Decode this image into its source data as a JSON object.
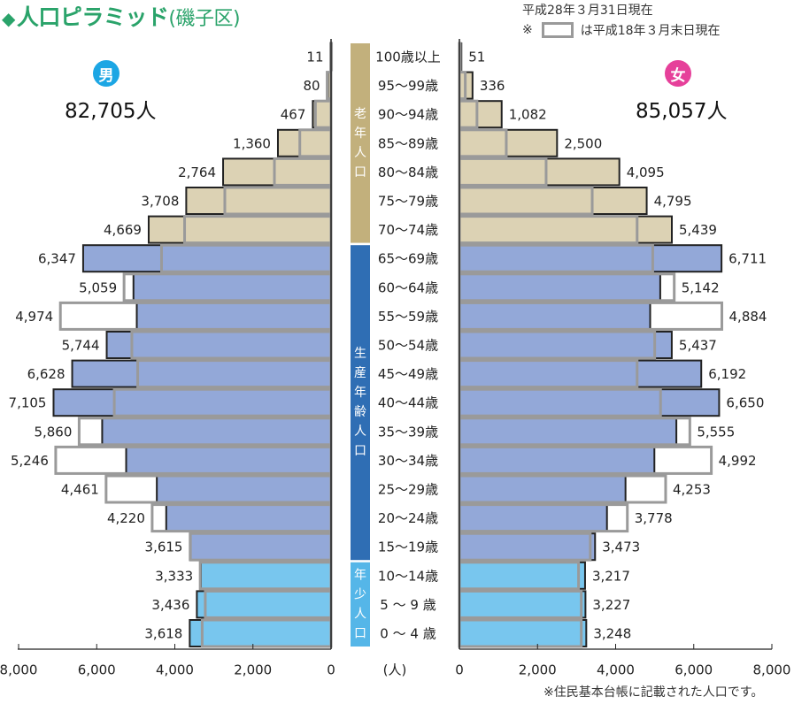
{
  "title": {
    "diamond": "◆",
    "main": "人口ピラミッド",
    "district": "(磯子区)"
  },
  "notes": {
    "as_of": "平成28年３月31日現在",
    "legend_prefix": "※",
    "legend_text": "は平成18年３月末日現在",
    "footnote": "※住民基本台帳に記載された人口です。"
  },
  "male": {
    "badge": "男",
    "total": "82,705人",
    "color": "#1ca6e4"
  },
  "female": {
    "badge": "女",
    "total": "85,057人",
    "color": "#e6409a"
  },
  "group_labels": {
    "elderly": [
      "老",
      "年",
      "人",
      "口"
    ],
    "working": [
      "生",
      "産",
      "年",
      "齢",
      "人",
      "口"
    ],
    "young": [
      "年",
      "少",
      "人",
      "口"
    ]
  },
  "colors": {
    "elderly": "#dcd2b4",
    "working": "#93a8d8",
    "young": "#78c6ee",
    "elderly_band": "#c2b07c",
    "working_band": "#2f6eb4",
    "young_band": "#55b6e8",
    "outline_current": "#222222",
    "outline_2006": "#9a9a9a"
  },
  "chart_data": {
    "type": "bar",
    "subtype": "population-pyramid",
    "categories": [
      "100歳以上",
      "95～99歳",
      "90～94歳",
      "85～89歳",
      "80～84歳",
      "75～79歳",
      "70～74歳",
      "65～69歳",
      "60～64歳",
      "55～59歳",
      "50～54歳",
      "45～49歳",
      "40～44歳",
      "35～39歳",
      "30～34歳",
      "25～29歳",
      "20～24歳",
      "15～19歳",
      "10～14歳",
      "5 ～ 9 歳",
      "0 ～ 4 歳"
    ],
    "groups": [
      "elderly",
      "elderly",
      "elderly",
      "elderly",
      "elderly",
      "elderly",
      "elderly",
      "working",
      "working",
      "working",
      "working",
      "working",
      "working",
      "working",
      "working",
      "working",
      "working",
      "working",
      "young",
      "young",
      "young"
    ],
    "series": [
      {
        "side": "male",
        "period": "current",
        "values": [
          11,
          80,
          467,
          1360,
          2764,
          3708,
          4669,
          6347,
          5059,
          4974,
          5744,
          6628,
          7105,
          5860,
          5246,
          4461,
          4220,
          3615,
          3333,
          3436,
          3618
        ],
        "labels": [
          "11",
          "80",
          "467",
          "1,360",
          "2,764",
          "3,708",
          "4,669",
          "6,347",
          "5,059",
          "4,974",
          "5,744",
          "6,628",
          "7,105",
          "5,860",
          "5,246",
          "4,461",
          "4,220",
          "3,615",
          "3,333",
          "3,436",
          "3,618"
        ]
      },
      {
        "side": "female",
        "period": "current",
        "values": [
          51,
          336,
          1082,
          2500,
          4095,
          4795,
          5439,
          6711,
          5142,
          4884,
          5437,
          6192,
          6650,
          5555,
          4992,
          4253,
          3778,
          3473,
          3217,
          3227,
          3248
        ],
        "labels": [
          "51",
          "336",
          "1,082",
          "2,500",
          "4,095",
          "4,795",
          "5,439",
          "6,711",
          "5,142",
          "4,884",
          "5,437",
          "6,192",
          "6,650",
          "5,555",
          "4,992",
          "4,253",
          "3,778",
          "3,473",
          "3,217",
          "3,227",
          "3,248"
        ]
      },
      {
        "side": "male",
        "period": "2006",
        "values": [
          10,
          100,
          400,
          800,
          1450,
          2720,
          3750,
          4340,
          5300,
          6930,
          5100,
          4950,
          5550,
          6450,
          7050,
          5760,
          4580,
          3600,
          3350,
          3220,
          3300
        ]
      },
      {
        "side": "female",
        "period": "2006",
        "values": [
          20,
          150,
          450,
          1200,
          2220,
          3400,
          4550,
          4950,
          5500,
          6720,
          5000,
          4550,
          5150,
          5900,
          6450,
          5280,
          4300,
          3350,
          3050,
          3120,
          3120
        ]
      }
    ],
    "x_ticks": [
      "8,000",
      "6,000",
      "4,000",
      "2,000",
      "0",
      "0",
      "2,000",
      "4,000",
      "6,000",
      "8,000"
    ],
    "x_unit": "(人)",
    "xlim": [
      0,
      8000
    ]
  }
}
